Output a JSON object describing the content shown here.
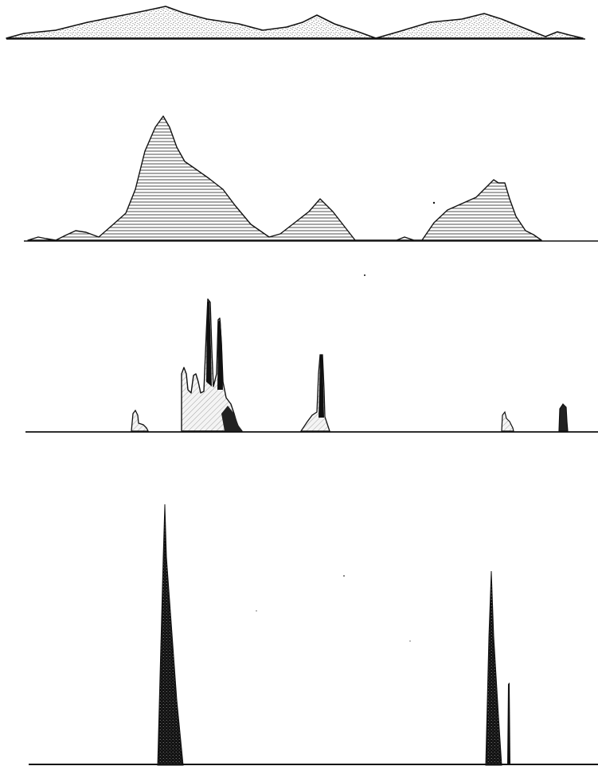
{
  "figure": {
    "description_free": true,
    "colors": {
      "ink": "#111111",
      "paper": "#ffffff",
      "stipple_fill": "#f2f2f2",
      "light_fill": "#e8e8e8"
    },
    "panels": [
      {
        "id": "panel-1",
        "fill_style": "stipple",
        "peak_count": 3
      },
      {
        "id": "panel-2",
        "fill_style": "horizontal-hatch",
        "peak_count": 3
      },
      {
        "id": "panel-3",
        "fill_style": "light-hatch-with-dark-spikes",
        "peak_count": 5
      },
      {
        "id": "panel-4",
        "fill_style": "solid-dark",
        "peak_count": 3
      }
    ]
  }
}
